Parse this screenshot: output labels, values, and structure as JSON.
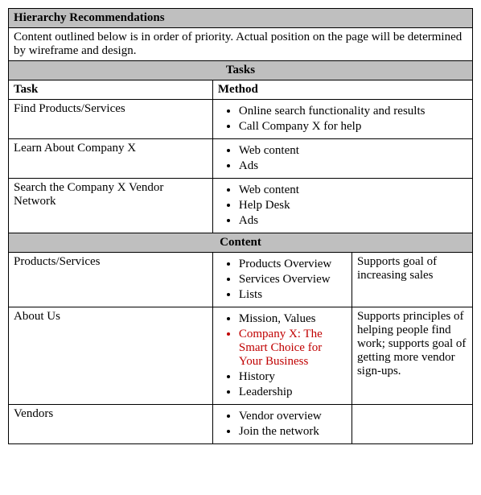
{
  "title": "Hierarchy Recommendations",
  "subtitle": "Content outlined below is in order of priority. Actual position on the page will be determined by wireframe and design.",
  "tasks": {
    "heading": "Tasks",
    "col_task": "Task",
    "col_method": "Method",
    "rows": [
      {
        "task": "Find Products/Services",
        "methods": [
          {
            "text": "Online search functionality and results",
            "red": false
          },
          {
            "text": "Call Company X for help",
            "red": false
          }
        ]
      },
      {
        "task": "Learn About Company X",
        "methods": [
          {
            "text": "Web content",
            "red": false
          },
          {
            "text": "Ads",
            "red": false
          }
        ]
      },
      {
        "task": "Search the Company X Vendor Network",
        "methods": [
          {
            "text": "Web content",
            "red": false
          },
          {
            "text": "Help Desk",
            "red": false
          },
          {
            "text": "Ads",
            "red": false
          }
        ]
      }
    ]
  },
  "content": {
    "heading": "Content",
    "rows": [
      {
        "label": "Products/Services",
        "items": [
          {
            "text": "Products Overview",
            "red": false
          },
          {
            "text": "Services Overview",
            "red": false
          },
          {
            "text": "Lists",
            "red": false
          }
        ],
        "support": "Supports goal of increasing sales"
      },
      {
        "label": "About Us",
        "items": [
          {
            "text": "Mission, Values",
            "red": false
          },
          {
            "text": "Company X: The Smart Choice for Your Business",
            "red": true
          },
          {
            "text": "History",
            "red": false
          },
          {
            "text": "Leadership",
            "red": false
          }
        ],
        "support": "Supports principles of helping people find work; supports goal of getting more vendor sign-ups."
      },
      {
        "label": "Vendors",
        "items": [
          {
            "text": "Vendor overview",
            "red": false
          },
          {
            "text": "Join the network",
            "red": false
          }
        ],
        "support": ""
      }
    ]
  }
}
